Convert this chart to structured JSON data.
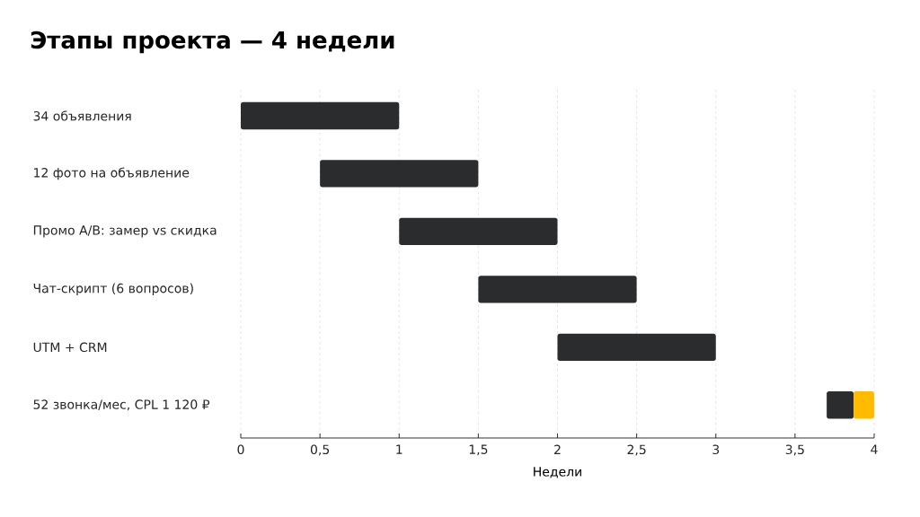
{
  "chart_data": {
    "type": "bar",
    "title": "Этапы проекта — 4 недели",
    "xlabel": "Недели",
    "orientation": "horizontal",
    "grid": "x",
    "categories": [
      "34 объявления",
      "12 фото на объявление",
      "Промо A/B: замер vs скидка",
      "Чат-скрипт (6 вопросов)",
      "UTM + CRM",
      "52 звонка/мес, CPL 1 120 ₽"
    ],
    "series": [
      {
        "color": "#2b2c2e",
        "base": [
          0,
          0.5,
          1,
          1.5,
          2,
          3.7
        ],
        "values": [
          1,
          1,
          1,
          1,
          1,
          0.17
        ]
      },
      {
        "color": "#ffbb00",
        "base": [
          null,
          null,
          null,
          null,
          null,
          3.87
        ],
        "values": [
          null,
          null,
          null,
          null,
          null,
          0.13
        ]
      }
    ],
    "xlim": [
      0,
      4
    ],
    "xticks": [
      0,
      {
        "value": 0.5,
        "label": "0,5"
      },
      1,
      {
        "value": 1.5,
        "label": "1,5"
      },
      2,
      {
        "value": 2.5,
        "label": "2,5"
      },
      3,
      {
        "value": 3.5,
        "label": "3,5"
      },
      4
    ]
  }
}
